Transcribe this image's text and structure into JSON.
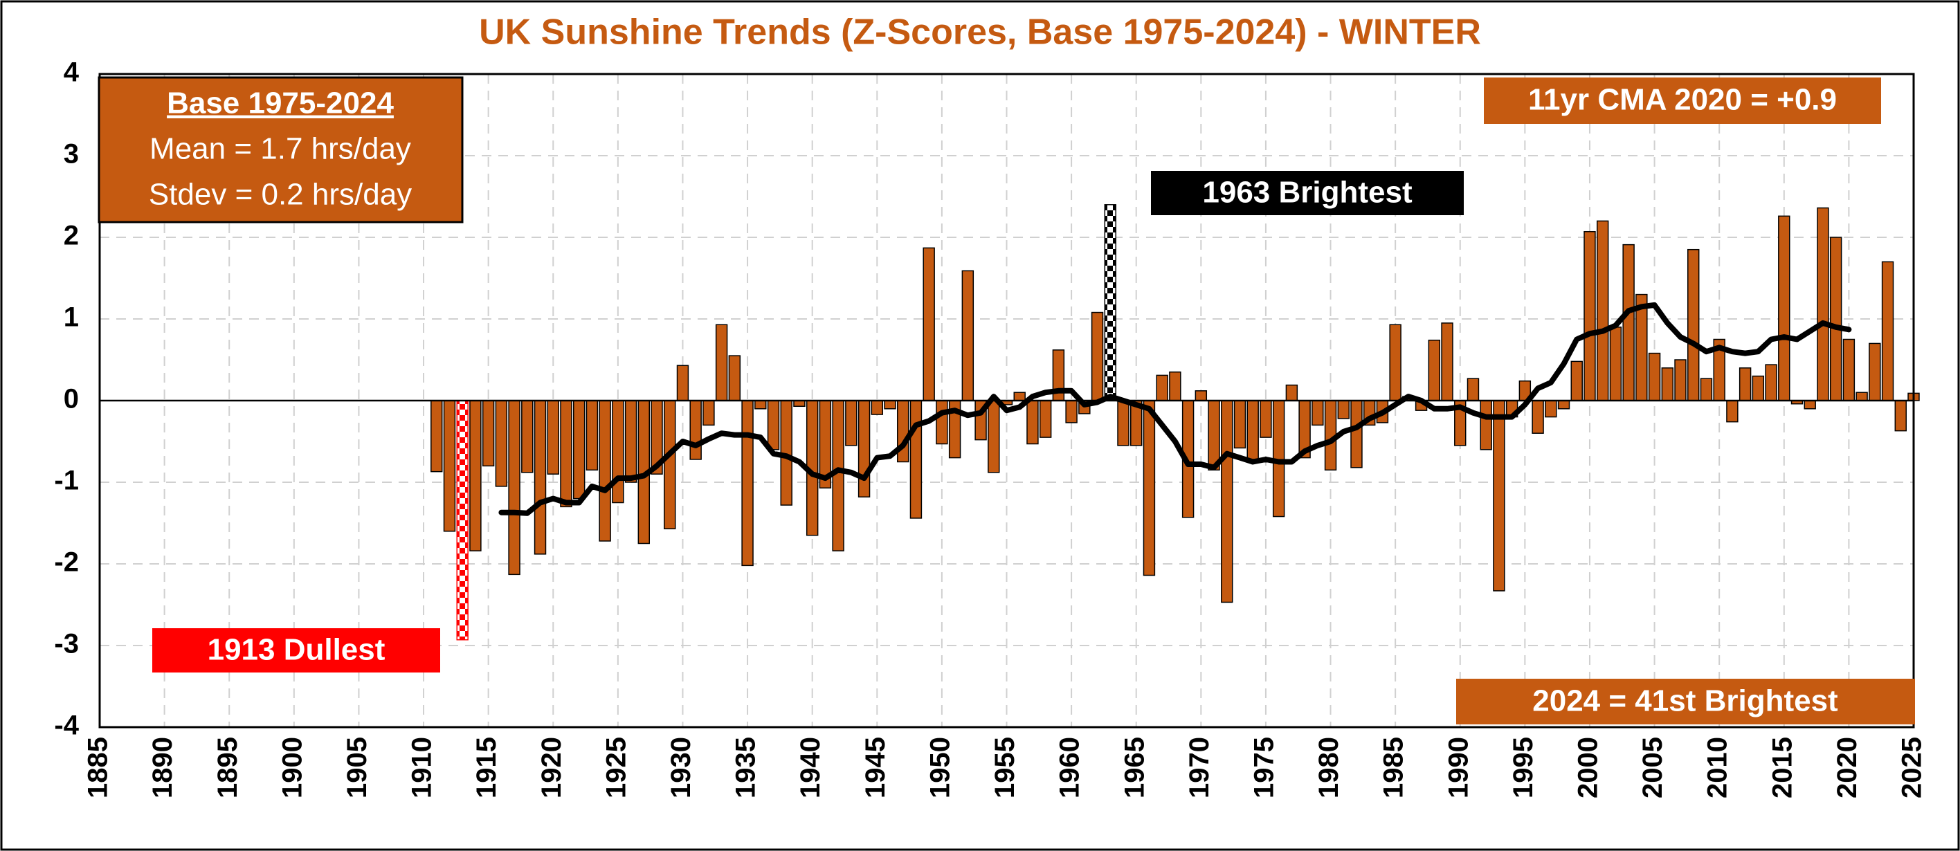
{
  "chart_data": {
    "type": "bar",
    "title": "UK Sunshine Trends (Z-Scores, Base 1975-2024) - WINTER",
    "x": [
      1911,
      1912,
      1913,
      1914,
      1915,
      1916,
      1917,
      1918,
      1919,
      1920,
      1921,
      1922,
      1923,
      1924,
      1925,
      1926,
      1927,
      1928,
      1929,
      1930,
      1931,
      1932,
      1933,
      1934,
      1935,
      1936,
      1937,
      1938,
      1939,
      1940,
      1941,
      1942,
      1943,
      1944,
      1945,
      1946,
      1947,
      1948,
      1949,
      1950,
      1951,
      1952,
      1953,
      1954,
      1955,
      1956,
      1957,
      1958,
      1959,
      1960,
      1961,
      1962,
      1963,
      1964,
      1965,
      1966,
      1967,
      1968,
      1969,
      1970,
      1971,
      1972,
      1973,
      1974,
      1975,
      1976,
      1977,
      1978,
      1979,
      1980,
      1981,
      1982,
      1983,
      1984,
      1985,
      1986,
      1987,
      1988,
      1989,
      1990,
      1991,
      1992,
      1993,
      1994,
      1995,
      1996,
      1997,
      1998,
      1999,
      2000,
      2001,
      2002,
      2003,
      2004,
      2005,
      2006,
      2007,
      2008,
      2009,
      2010,
      2011,
      2012,
      2013,
      2014,
      2015,
      2016,
      2017,
      2018,
      2019,
      2020,
      2021,
      2022,
      2023,
      2024,
      2025
    ],
    "series": [
      {
        "type": "bar",
        "color": "#c55a11",
        "values": [
          -0.87,
          -1.6,
          -2.93,
          -1.84,
          -0.8,
          -1.05,
          -2.13,
          -0.88,
          -1.88,
          -0.9,
          -1.3,
          -1.2,
          -0.85,
          -1.72,
          -1.25,
          -1.0,
          -1.75,
          -0.9,
          -1.57,
          0.43,
          -0.72,
          -0.3,
          0.93,
          0.55,
          -2.02,
          -0.1,
          -0.6,
          -1.28,
          -0.07,
          -1.65,
          -1.07,
          -1.84,
          -0.55,
          -1.18,
          -0.17,
          -0.1,
          -0.75,
          -1.44,
          1.87,
          -0.53,
          -0.7,
          1.59,
          -0.48,
          -0.88,
          -0.05,
          0.1,
          -0.53,
          -0.45,
          0.62,
          -0.27,
          -0.16,
          1.08,
          2.4,
          -0.55,
          -0.55,
          -2.14,
          0.31,
          0.35,
          -1.43,
          0.12,
          -0.85,
          -2.47,
          -0.58,
          -0.72,
          -0.45,
          -1.42,
          0.19,
          -0.7,
          -0.3,
          -0.85,
          -0.22,
          -0.82,
          -0.3,
          -0.27,
          0.93,
          0.05,
          -0.12,
          0.74,
          0.95,
          -0.55,
          0.27,
          -0.6,
          -2.33,
          -0.2,
          0.24,
          -0.4,
          -0.2,
          -0.1,
          0.48,
          2.07,
          2.2,
          0.9,
          1.91,
          1.3,
          0.58,
          0.4,
          0.5,
          1.85,
          0.27,
          0.75,
          -0.26,
          0.4,
          0.3,
          0.44,
          2.26,
          -0.04,
          -0.1,
          2.36,
          2.0,
          0.75,
          0.1,
          0.7,
          1.7,
          -0.37,
          0.09
        ]
      },
      {
        "type": "line",
        "color": "#000000",
        "values": [
          null,
          null,
          null,
          null,
          null,
          -1.37,
          -1.37,
          -1.38,
          -1.25,
          -1.2,
          -1.25,
          -1.25,
          -1.05,
          -1.1,
          -0.95,
          -0.95,
          -0.92,
          -0.8,
          -0.65,
          -0.5,
          -0.55,
          -0.47,
          -0.4,
          -0.42,
          -0.42,
          -0.45,
          -0.65,
          -0.68,
          -0.75,
          -0.9,
          -0.95,
          -0.85,
          -0.88,
          -0.95,
          -0.7,
          -0.68,
          -0.55,
          -0.3,
          -0.25,
          -0.15,
          -0.12,
          -0.18,
          -0.15,
          0.05,
          -0.12,
          -0.08,
          0.05,
          0.1,
          0.12,
          0.12,
          -0.05,
          -0.02,
          0.05,
          0.0,
          -0.05,
          -0.1,
          -0.3,
          -0.5,
          -0.78,
          -0.78,
          -0.82,
          -0.65,
          -0.7,
          -0.75,
          -0.72,
          -0.75,
          -0.75,
          -0.62,
          -0.55,
          -0.5,
          -0.38,
          -0.33,
          -0.22,
          -0.15,
          -0.05,
          0.05,
          0.0,
          -0.1,
          -0.1,
          -0.08,
          -0.15,
          -0.2,
          -0.2,
          -0.2,
          -0.05,
          0.15,
          0.22,
          0.45,
          0.75,
          0.82,
          0.85,
          0.92,
          1.1,
          1.15,
          1.17,
          0.95,
          0.78,
          0.7,
          0.6,
          0.65,
          0.6,
          0.58,
          0.6,
          0.75,
          0.78,
          0.75,
          0.85,
          0.95,
          0.9,
          0.87,
          null,
          null,
          null,
          null,
          null
        ]
      }
    ],
    "highlights": [
      {
        "index": 2,
        "color": "#ff0000"
      },
      {
        "index": 52,
        "color": "#000000"
      }
    ],
    "xlim": [
      1885,
      2025
    ],
    "xticks": [
      1885,
      1890,
      1895,
      1900,
      1905,
      1910,
      1915,
      1920,
      1925,
      1930,
      1935,
      1940,
      1945,
      1950,
      1955,
      1960,
      1965,
      1970,
      1975,
      1980,
      1985,
      1990,
      1995,
      2000,
      2005,
      2010,
      2015,
      2020,
      2025
    ],
    "ylim": [
      -4,
      4
    ],
    "yticks": [
      -4,
      -3,
      -2,
      -1,
      0,
      1,
      2,
      3,
      4
    ],
    "grid": true,
    "annotations": [
      {
        "text": "Base 1975-2024",
        "color": "#c55a11"
      },
      {
        "text": "Mean = 1.7 hrs/day",
        "color": "#c55a11"
      },
      {
        "text": "Stdev = 0.2 hrs/day",
        "color": "#c55a11"
      },
      {
        "text": "11yr CMA 2020 = +0.9",
        "color": "#c55a11"
      },
      {
        "text": "1963 Brightest",
        "color": "#000000"
      },
      {
        "text": "1913 Dullest",
        "color": "#ff0000"
      },
      {
        "text": "2024 = 41st Brightest",
        "color": "#c55a11"
      }
    ]
  }
}
